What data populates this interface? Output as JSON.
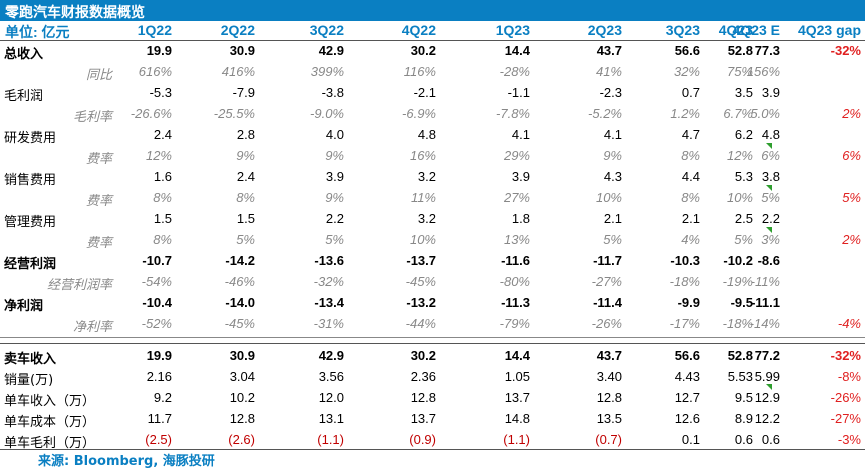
{
  "title": "零跑汽车财报数据概览",
  "header": {
    "unit": "单位: 亿元",
    "columns": [
      "1Q22",
      "2Q22",
      "3Q22",
      "4Q22",
      "1Q23",
      "2Q23",
      "3Q23",
      "4Q23",
      "4Q23 E",
      "4Q23 gap"
    ]
  },
  "rows": [
    {
      "label": "总收入",
      "values": [
        "19.9",
        "30.9",
        "42.9",
        "30.2",
        "14.4",
        "43.7",
        "56.6",
        "52.8",
        "77.3",
        "-32%"
      ]
    },
    {
      "label": "同比",
      "values": [
        "616%",
        "416%",
        "399%",
        "116%",
        "-28%",
        "41%",
        "32%",
        "75%",
        "156%",
        ""
      ]
    },
    {
      "label": "毛利润",
      "values": [
        "-5.3",
        "-7.9",
        "-3.8",
        "-2.1",
        "-1.1",
        "-2.3",
        "0.7",
        "3.5",
        "3.9",
        ""
      ]
    },
    {
      "label": "毛利率",
      "values": [
        "-26.6%",
        "-25.5%",
        "-9.0%",
        "-6.9%",
        "-7.8%",
        "-5.2%",
        "1.2%",
        "6.7%",
        "5.0%",
        "2%"
      ]
    },
    {
      "label": "研发费用",
      "values": [
        "2.4",
        "2.8",
        "4.0",
        "4.8",
        "4.1",
        "4.1",
        "4.7",
        "6.2",
        "4.8",
        ""
      ]
    },
    {
      "label": "费率",
      "values": [
        "12%",
        "9%",
        "9%",
        "16%",
        "29%",
        "9%",
        "8%",
        "12%",
        "6%",
        "6%"
      ]
    },
    {
      "label": "销售费用",
      "values": [
        "1.6",
        "2.4",
        "3.9",
        "3.2",
        "3.9",
        "4.3",
        "4.4",
        "5.3",
        "3.8",
        ""
      ]
    },
    {
      "label": "费率",
      "values": [
        "8%",
        "8%",
        "9%",
        "11%",
        "27%",
        "10%",
        "8%",
        "10%",
        "5%",
        "5%"
      ]
    },
    {
      "label": "管理费用",
      "values": [
        "1.5",
        "1.5",
        "2.2",
        "3.2",
        "1.8",
        "2.1",
        "2.1",
        "2.5",
        "2.2",
        ""
      ]
    },
    {
      "label": "费率",
      "values": [
        "8%",
        "5%",
        "5%",
        "10%",
        "13%",
        "5%",
        "4%",
        "5%",
        "3%",
        "2%"
      ]
    },
    {
      "label": "经营利润",
      "values": [
        "-10.7",
        "-14.2",
        "-13.6",
        "-13.7",
        "-11.6",
        "-11.7",
        "-10.3",
        "-10.2",
        "-8.6",
        ""
      ]
    },
    {
      "label": "经营利润率",
      "values": [
        "-54%",
        "-46%",
        "-32%",
        "-45%",
        "-80%",
        "-27%",
        "-18%",
        "-19%",
        "-11%",
        ""
      ]
    },
    {
      "label": "净利润",
      "values": [
        "-10.4",
        "-14.0",
        "-13.4",
        "-13.2",
        "-11.3",
        "-11.4",
        "-9.9",
        "-9.5",
        "-11.1",
        ""
      ]
    },
    {
      "label": "净利率",
      "values": [
        "-52%",
        "-45%",
        "-31%",
        "-44%",
        "-79%",
        "-26%",
        "-17%",
        "-18%",
        "-14%",
        "-4%"
      ]
    }
  ],
  "rows2": [
    {
      "label": "卖车收入",
      "values": [
        "19.9",
        "30.9",
        "42.9",
        "30.2",
        "14.4",
        "43.7",
        "56.6",
        "52.8",
        "77.2",
        "-32%"
      ]
    },
    {
      "label": "销量(万)",
      "values": [
        "2.16",
        "3.04",
        "3.56",
        "2.36",
        "1.05",
        "3.40",
        "4.43",
        "5.53",
        "5.99",
        "-8%"
      ]
    },
    {
      "label": "单车收入（万）",
      "values": [
        "9.2",
        "10.2",
        "12.0",
        "12.8",
        "13.7",
        "12.8",
        "12.7",
        "9.5",
        "12.9",
        "-26%"
      ]
    },
    {
      "label": "单车成本（万）",
      "values": [
        "11.7",
        "12.8",
        "13.1",
        "13.7",
        "14.8",
        "13.5",
        "12.6",
        "8.9",
        "12.2",
        "-27%"
      ]
    },
    {
      "label": "单车毛利（万）",
      "values": [
        "(2.5)",
        "(2.6)",
        "(1.1)",
        "(0.9)",
        "(1.1)",
        "(0.7)",
        "0.1",
        "0.6",
        "0.6",
        "-3%"
      ]
    }
  ],
  "source": "来源:   Bloomberg, 海豚投研",
  "colors": {
    "accent": "#0a7fc2",
    "gap_red": "#e02020",
    "marker_green": "#2e9e2e"
  }
}
